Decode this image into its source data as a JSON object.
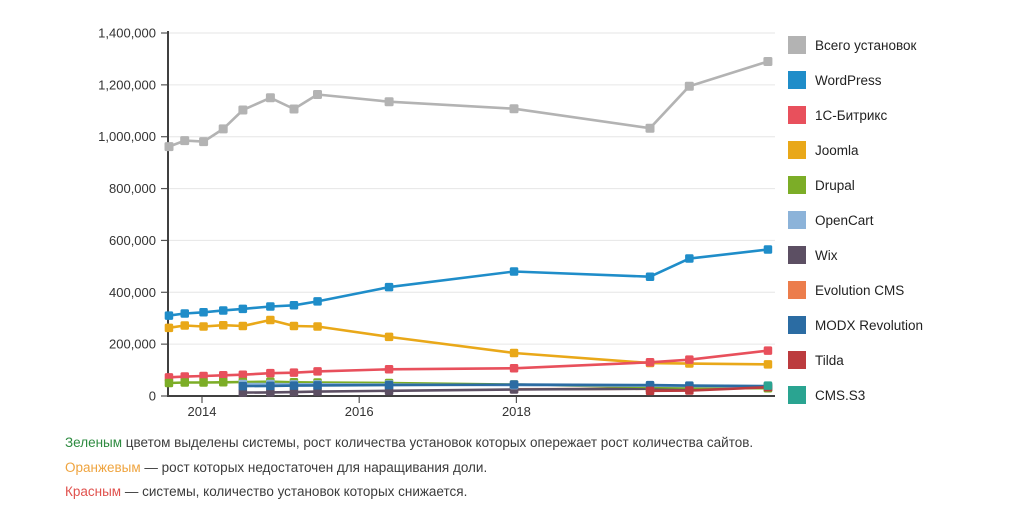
{
  "chart_data": {
    "type": "line",
    "title": "",
    "xlabel": "",
    "ylabel": "",
    "ylim": [
      0,
      1400000
    ],
    "y_tick_step": 200000,
    "grid": "horizontal",
    "legend_position": "right",
    "x_tick_labels": [
      "2014",
      "2016",
      "2018"
    ],
    "x_tick_years": [
      2014,
      2016,
      2018
    ],
    "x_years": [
      2013.58,
      2013.78,
      2014.02,
      2014.27,
      2014.52,
      2014.87,
      2015.17,
      2015.47,
      2016.38,
      2017.97,
      2019.7,
      2020.2,
      2021.2
    ],
    "series": [
      {
        "name": "Всего установок",
        "color": "#b3b3b3",
        "values": [
          962000,
          985000,
          981000,
          1030000,
          1103000,
          1150000,
          1107000,
          1163000,
          1135000,
          1108000,
          1033000,
          1195000,
          1290000
        ]
      },
      {
        "name": "WordPress",
        "color": "#1f8dc9",
        "values": [
          310000,
          318000,
          323000,
          330000,
          336000,
          345000,
          350000,
          365000,
          420000,
          480000,
          460000,
          530000,
          565000
        ]
      },
      {
        "name": "1С-Битрикс",
        "color": "#e8505c",
        "values": [
          72000,
          75000,
          77000,
          80000,
          82000,
          88000,
          90000,
          95000,
          103000,
          107000,
          130000,
          140000,
          175000
        ]
      },
      {
        "name": "Joomla",
        "color": "#e9a819",
        "values": [
          263000,
          272000,
          268000,
          273000,
          270000,
          293000,
          270000,
          268000,
          228000,
          166000,
          127000,
          125000,
          122000
        ]
      },
      {
        "name": "Drupal",
        "color": "#7cad27",
        "values": [
          50000,
          52000,
          52000,
          53000,
          54000,
          55000,
          53000,
          52000,
          50000,
          44000,
          35000,
          32000,
          30000
        ]
      },
      {
        "name": "OpenCart",
        "color": "#8cb3d9",
        "values": [
          null,
          null,
          null,
          null,
          46000,
          46000,
          45000,
          45000,
          44000,
          42000,
          40000,
          38000,
          37000
        ]
      },
      {
        "name": "Wix",
        "color": "#5c4f63",
        "values": [
          null,
          null,
          null,
          null,
          13000,
          14000,
          15000,
          17000,
          20000,
          25000,
          28000,
          30000,
          31000
        ]
      },
      {
        "name": "Evolution CMS",
        "color": "#ec7d4c",
        "values": [
          null,
          null,
          null,
          null,
          null,
          null,
          null,
          null,
          null,
          26000,
          28000,
          30000,
          32000
        ]
      },
      {
        "name": "MODX Revolution",
        "color": "#2b6ca3",
        "values": [
          null,
          null,
          null,
          null,
          38000,
          39000,
          40000,
          41000,
          42000,
          44000,
          42000,
          40000,
          38000
        ]
      },
      {
        "name": "Tilda",
        "color": "#bc3b3e",
        "values": [
          null,
          null,
          null,
          null,
          null,
          null,
          null,
          null,
          null,
          null,
          20000,
          21000,
          34000
        ]
      },
      {
        "name": "CMS.S3",
        "color": "#2aa491",
        "values": [
          null,
          null,
          null,
          null,
          null,
          null,
          null,
          null,
          null,
          null,
          null,
          null,
          40000
        ]
      }
    ]
  },
  "footer": {
    "lines": [
      {
        "lead": "Зеленым",
        "lead_color": "#2e8b40",
        "rest": " цветом выделены системы, рост количества установок которых опережает рост количества сайтов."
      },
      {
        "lead": "Оранжевым",
        "lead_color": "#efa43f",
        "rest": " — рост которых недостаточен для наращивания доли."
      },
      {
        "lead": "Красным",
        "lead_color": "#e0524e",
        "rest": " — системы, количество установок которых снижается."
      }
    ]
  }
}
